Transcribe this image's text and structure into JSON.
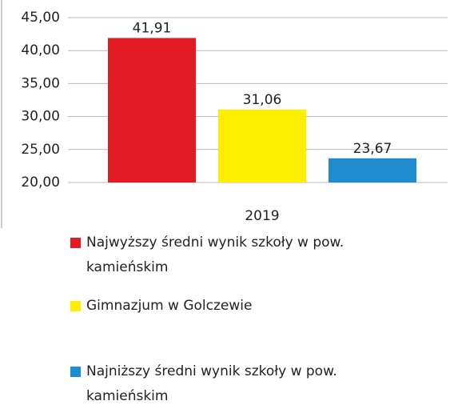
{
  "chart_data": {
    "type": "bar",
    "categories": [
      "2019"
    ],
    "series": [
      {
        "name": "Najwyższy średni wynik szkoły w pow. kamieńskim",
        "color": "#e31b23",
        "values": [
          41.91
        ],
        "value_labels": [
          "41,91"
        ]
      },
      {
        "name": "Gimnazjum w Golczewie",
        "color": "#ffee00",
        "values": [
          31.06
        ],
        "value_labels": [
          "31,06"
        ]
      },
      {
        "name": "Najniższy średni wynik szkoły w pow. kamieńskim",
        "color": "#1f8ccf",
        "values": [
          23.67
        ],
        "value_labels": [
          "23,67"
        ]
      }
    ],
    "ylim": [
      20,
      45
    ],
    "yticks": [
      {
        "value": 20,
        "label": "20,00"
      },
      {
        "value": 25,
        "label": "25,00"
      },
      {
        "value": 30,
        "label": "30,00"
      },
      {
        "value": 35,
        "label": "35,00"
      },
      {
        "value": 40,
        "label": "40,00"
      },
      {
        "value": 45,
        "label": "45,00"
      }
    ],
    "grid": true,
    "legend": "bottom"
  }
}
